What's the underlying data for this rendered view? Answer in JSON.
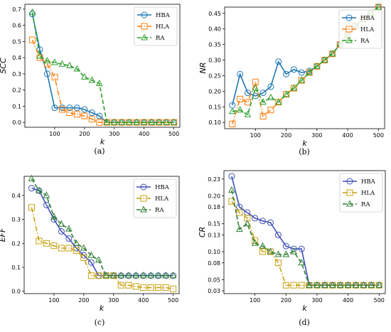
{
  "chart_data": [
    {
      "id": "a",
      "type": "line",
      "caption": "(a)",
      "xlabel": "k",
      "ylabel": "SCC",
      "xlim": [
        0,
        520
      ],
      "ylim": [
        -0.03,
        0.73
      ],
      "xticks": [
        100,
        200,
        300,
        400,
        500
      ],
      "yticks": [
        0.0,
        0.1,
        0.2,
        0.3,
        0.4,
        0.5,
        0.6,
        0.7
      ],
      "ytick_labels": [
        "0.0",
        "0.1",
        "0.2",
        "0.3",
        "0.4",
        "0.5",
        "0.6",
        "0.7"
      ],
      "legend_position": "top-right",
      "grid": false,
      "series": [
        {
          "name": "HBA",
          "color": "#1f77b4",
          "dash": "solid",
          "marker": "circle",
          "x": [
            25,
            50,
            75,
            100,
            125,
            150,
            175,
            200,
            225,
            250,
            275,
            300,
            325,
            350,
            375,
            400,
            425,
            450,
            475,
            500
          ],
          "y": [
            0.67,
            0.45,
            0.3,
            0.09,
            0.09,
            0.09,
            0.09,
            0.08,
            0.06,
            0.04,
            0.0,
            0.0,
            0.0,
            0.0,
            0.0,
            0.0,
            0.0,
            0.0,
            0.0,
            0.0
          ]
        },
        {
          "name": "HLA",
          "color": "#ff7f0e",
          "dash": "dashdot",
          "marker": "square",
          "x": [
            25,
            50,
            75,
            100,
            125,
            150,
            175,
            200,
            225,
            250,
            275,
            300,
            325,
            350,
            375,
            400,
            425,
            450,
            475,
            500
          ],
          "y": [
            0.51,
            0.4,
            0.36,
            0.28,
            0.08,
            0.06,
            0.05,
            0.04,
            0.02,
            0.0,
            0.0,
            0.0,
            0.0,
            0.0,
            0.0,
            0.0,
            0.0,
            0.0,
            0.0,
            0.0
          ]
        },
        {
          "name": "RA",
          "color": "#2ca02c",
          "dash": "dashed",
          "marker": "triangle",
          "x": [
            25,
            50,
            75,
            100,
            125,
            150,
            175,
            200,
            225,
            250,
            275,
            300,
            325,
            350,
            375,
            400,
            425,
            450,
            475,
            500
          ],
          "y": [
            0.68,
            0.41,
            0.38,
            0.37,
            0.36,
            0.35,
            0.33,
            0.28,
            0.26,
            0.24,
            0.0,
            0.0,
            0.0,
            0.0,
            0.0,
            0.0,
            0.0,
            0.0,
            0.0,
            0.0
          ]
        }
      ]
    },
    {
      "id": "b",
      "type": "line",
      "caption": "(b)",
      "xlabel": "k",
      "ylabel": "NR",
      "xlim": [
        0,
        520
      ],
      "ylim": [
        0.08,
        0.47
      ],
      "xticks": [
        100,
        200,
        300,
        400,
        500
      ],
      "yticks": [
        0.1,
        0.15,
        0.2,
        0.25,
        0.3,
        0.35,
        0.4,
        0.45
      ],
      "ytick_labels": [
        "0.10",
        "0.15",
        "0.20",
        "0.25",
        "0.30",
        "0.35",
        "0.40",
        "0.45"
      ],
      "legend_position": "top-right",
      "grid": false,
      "series": [
        {
          "name": "HBA",
          "color": "#1f77b4",
          "dash": "solid",
          "marker": "circle",
          "x": [
            25,
            50,
            75,
            100,
            125,
            150,
            175,
            200,
            225,
            250,
            275,
            300,
            325,
            350,
            375,
            400,
            425,
            450,
            475,
            500
          ],
          "y": [
            0.155,
            0.255,
            0.195,
            0.185,
            0.195,
            0.215,
            0.295,
            0.255,
            0.27,
            0.26,
            0.265,
            0.28,
            0.3,
            0.32,
            0.35,
            0.38,
            0.41,
            0.43,
            0.45,
            0.47
          ]
        },
        {
          "name": "HLA",
          "color": "#ff7f0e",
          "dash": "dashdot",
          "marker": "square",
          "x": [
            25,
            50,
            75,
            100,
            125,
            150,
            175,
            200,
            225,
            250,
            275,
            300,
            325,
            350,
            375,
            400,
            425,
            450,
            475,
            500
          ],
          "y": [
            0.095,
            0.175,
            0.165,
            0.23,
            0.12,
            0.14,
            0.165,
            0.19,
            0.21,
            0.235,
            0.26,
            0.28,
            0.3,
            0.32,
            0.35,
            0.38,
            0.41,
            0.43,
            0.45,
            0.47
          ]
        },
        {
          "name": "RA",
          "color": "#2ca02c",
          "dash": "dashed",
          "marker": "triangle",
          "x": [
            25,
            50,
            75,
            100,
            125,
            150,
            175,
            200,
            225,
            250,
            275,
            300,
            325,
            350,
            375,
            400,
            425,
            450,
            475,
            500
          ],
          "y": [
            0.135,
            0.14,
            0.125,
            0.21,
            0.165,
            0.18,
            0.165,
            0.19,
            0.21,
            0.235,
            0.26,
            0.28,
            0.3,
            0.32,
            0.35,
            0.38,
            0.41,
            0.43,
            0.45,
            0.47
          ]
        }
      ]
    },
    {
      "id": "c",
      "type": "line",
      "caption": "(c)",
      "xlabel": "k",
      "ylabel": "EFF",
      "xlim": [
        0,
        520
      ],
      "ylim": [
        -0.01,
        0.48
      ],
      "xticks": [
        100,
        200,
        300,
        400,
        500
      ],
      "yticks": [
        0.0,
        0.1,
        0.2,
        0.3,
        0.4
      ],
      "ytick_labels": [
        "0.0",
        "0.1",
        "0.2",
        "0.3",
        "0.4"
      ],
      "legend_position": "top-right",
      "grid": false,
      "series": [
        {
          "name": "HBA",
          "color": "#3f51b5",
          "dash": "solid",
          "marker": "circle",
          "x": [
            25,
            50,
            75,
            100,
            125,
            150,
            175,
            200,
            225,
            250,
            275,
            300,
            325,
            350,
            375,
            400,
            425,
            450,
            475,
            500
          ],
          "y": [
            0.43,
            0.42,
            0.36,
            0.3,
            0.25,
            0.22,
            0.18,
            0.15,
            0.12,
            0.065,
            0.065,
            0.065,
            0.065,
            0.065,
            0.065,
            0.065,
            0.065,
            0.065,
            0.065,
            0.065
          ]
        },
        {
          "name": "HLA",
          "color": "#c9a10f",
          "dash": "dashdot",
          "marker": "square",
          "x": [
            25,
            50,
            75,
            100,
            125,
            150,
            175,
            200,
            225,
            250,
            275,
            300,
            325,
            350,
            375,
            400,
            425,
            450,
            475,
            500
          ],
          "y": [
            0.35,
            0.21,
            0.2,
            0.19,
            0.18,
            0.18,
            0.17,
            0.14,
            0.065,
            0.065,
            0.065,
            0.065,
            0.025,
            0.025,
            0.02,
            0.015,
            0.015,
            0.015,
            0.015,
            0.01
          ]
        },
        {
          "name": "RA",
          "color": "#2e7d32",
          "dash": "dashed",
          "marker": "triangle",
          "x": [
            25,
            50,
            75,
            100,
            125,
            150,
            175,
            200,
            225,
            250,
            275,
            300,
            325,
            350,
            375,
            400,
            425,
            450,
            475,
            500
          ],
          "y": [
            0.47,
            0.42,
            0.4,
            0.31,
            0.28,
            0.26,
            0.2,
            0.18,
            0.15,
            0.13,
            0.065,
            0.065,
            0.065,
            0.065,
            0.065,
            0.065,
            0.065,
            0.065,
            0.065,
            0.065
          ]
        }
      ]
    },
    {
      "id": "d",
      "type": "line",
      "caption": "(d)",
      "xlabel": "k",
      "ylabel": "CR",
      "xlim": [
        0,
        520
      ],
      "ylim": [
        0.025,
        0.245
      ],
      "xticks": [
        100,
        200,
        300,
        400,
        500
      ],
      "yticks": [
        0.03,
        0.05,
        0.08,
        0.1,
        0.13,
        0.15,
        0.18,
        0.2,
        0.23
      ],
      "ytick_labels": [
        "0.03",
        "0.05",
        "0.08",
        "0.10",
        "0.13",
        "0.15",
        "0.18",
        "0.20",
        "0.23"
      ],
      "legend_position": "top-right",
      "grid": false,
      "series": [
        {
          "name": "HBA",
          "color": "#3f51b5",
          "dash": "solid",
          "marker": "circle",
          "x": [
            25,
            50,
            75,
            100,
            125,
            150,
            175,
            200,
            225,
            250,
            275,
            300,
            325,
            350,
            375,
            400,
            425,
            450,
            475,
            500
          ],
          "y": [
            0.235,
            0.18,
            0.17,
            0.16,
            0.155,
            0.152,
            0.13,
            0.11,
            0.105,
            0.105,
            0.04,
            0.04,
            0.04,
            0.04,
            0.04,
            0.04,
            0.04,
            0.04,
            0.04,
            0.04
          ]
        },
        {
          "name": "HLA",
          "color": "#c9a10f",
          "dash": "dashdot",
          "marker": "square",
          "x": [
            25,
            50,
            75,
            100,
            125,
            150,
            175,
            200,
            225,
            250,
            275,
            300,
            325,
            350,
            375,
            400,
            425,
            450,
            475,
            500
          ],
          "y": [
            0.19,
            0.17,
            0.16,
            0.12,
            0.1,
            0.1,
            0.08,
            0.04,
            0.04,
            0.04,
            0.04,
            0.04,
            0.04,
            0.04,
            0.04,
            0.04,
            0.04,
            0.04,
            0.04,
            0.04
          ]
        },
        {
          "name": "RA",
          "color": "#2e7d32",
          "dash": "dashed",
          "marker": "triangle",
          "x": [
            25,
            50,
            75,
            100,
            125,
            150,
            175,
            200,
            225,
            250,
            275,
            300,
            325,
            350,
            375,
            400,
            425,
            450,
            475,
            500
          ],
          "y": [
            0.21,
            0.14,
            0.15,
            0.115,
            0.11,
            0.1,
            0.095,
            0.095,
            0.1,
            0.08,
            0.04,
            0.04,
            0.04,
            0.04,
            0.04,
            0.04,
            0.04,
            0.04,
            0.04,
            0.04
          ]
        }
      ]
    }
  ]
}
